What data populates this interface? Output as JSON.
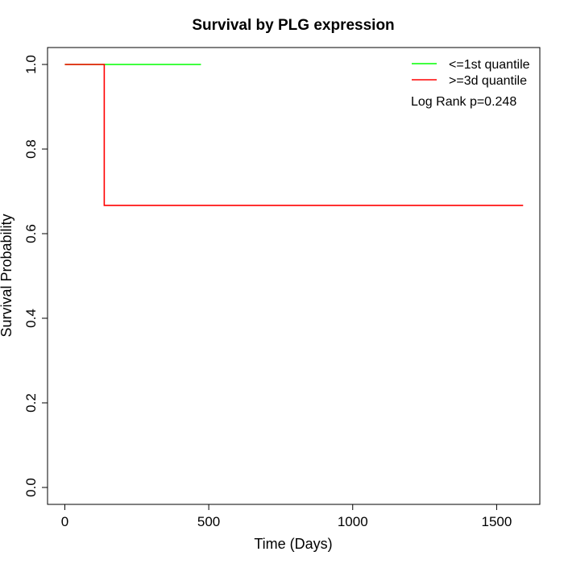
{
  "chart_data": {
    "type": "line",
    "title": "Survival by PLG expression",
    "xlabel": "Time (Days)",
    "ylabel": "Survival Probability",
    "xlim": [
      -60,
      1650
    ],
    "ylim": [
      -0.04,
      1.04
    ],
    "x_ticks": [
      0,
      500,
      1000,
      1500
    ],
    "x_tick_labels": [
      "0",
      "500",
      "1000",
      "1500"
    ],
    "y_ticks": [
      0.0,
      0.2,
      0.4,
      0.6,
      0.8,
      1.0
    ],
    "y_tick_labels": [
      "0.0",
      "0.2",
      "0.4",
      "0.6",
      "0.8",
      "1.0"
    ],
    "grid": false,
    "legend_position": "top-right",
    "series": [
      {
        "name": "<=1st quantile",
        "color": "#00ff00",
        "step": true,
        "x": [
          0,
          473
        ],
        "y": [
          1.0,
          1.0
        ]
      },
      {
        "name": ">=3d quantile",
        "color": "#ff0000",
        "step": true,
        "x": [
          0,
          137,
          1592
        ],
        "y": [
          1.0,
          0.6667,
          0.6667
        ]
      }
    ],
    "annotations": [
      "Log Rank p=0.248"
    ]
  }
}
